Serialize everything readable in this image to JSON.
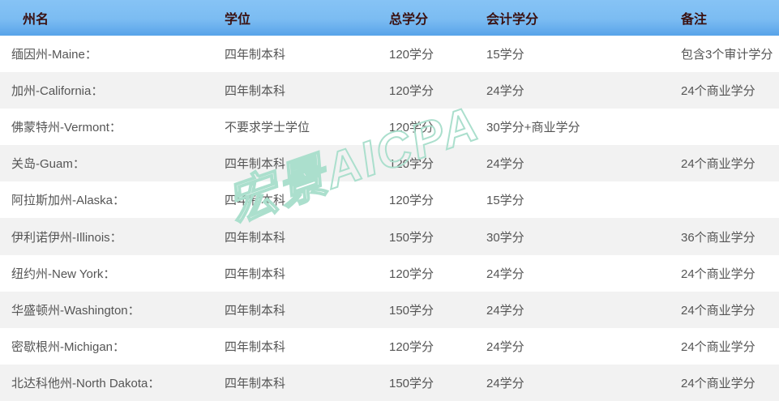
{
  "watermark": {
    "text": "宏景AICPA",
    "color": "#abdfcd"
  },
  "colors": {
    "header_gradient_top": "#86c3f5",
    "header_gradient_bottom": "#58a3e9",
    "header_text": "#3a1111",
    "body_text": "#555555",
    "row_alt_background": "#f2f2f2",
    "row_background": "#ffffff"
  },
  "table": {
    "columns": [
      {
        "key": "state",
        "label": "州名"
      },
      {
        "key": "degree",
        "label": "学位"
      },
      {
        "key": "total_credits",
        "label": "总学分"
      },
      {
        "key": "accounting_credits",
        "label": "会计学分"
      },
      {
        "key": "notes",
        "label": "备注"
      }
    ],
    "rows": [
      {
        "state": "缅因州-Maine：",
        "degree": "四年制本科",
        "total_credits": "120学分",
        "accounting_credits": "15学分",
        "notes": "包含3个审计学分"
      },
      {
        "state": "加州-California：",
        "degree": "四年制本科",
        "total_credits": "120学分",
        "accounting_credits": "24学分",
        "notes": "24个商业学分"
      },
      {
        "state": "佛蒙特州-Vermont：",
        "degree": "不要求学士学位",
        "total_credits": "120学分",
        "accounting_credits": "30学分+商业学分",
        "notes": ""
      },
      {
        "state": "关岛-Guam：",
        "degree": "四年制本科",
        "total_credits": "120学分",
        "accounting_credits": "24学分",
        "notes": "24个商业学分"
      },
      {
        "state": "阿拉斯加州-Alaska：",
        "degree": "四年制本科",
        "total_credits": "120学分",
        "accounting_credits": "15学分",
        "notes": ""
      },
      {
        "state": "伊利诺伊州-Illinois：",
        "degree": "四年制本科",
        "total_credits": "150学分",
        "accounting_credits": "30学分",
        "notes": "36个商业学分"
      },
      {
        "state": "纽约州-New York：",
        "degree": "四年制本科",
        "total_credits": "120学分",
        "accounting_credits": "24学分",
        "notes": "24个商业学分"
      },
      {
        "state": "华盛顿州-Washington：",
        "degree": "四年制本科",
        "total_credits": "150学分",
        "accounting_credits": "24学分",
        "notes": "24个商业学分"
      },
      {
        "state": "密歇根州-Michigan：",
        "degree": "四年制本科",
        "total_credits": "120学分",
        "accounting_credits": "24学分",
        "notes": "24个商业学分"
      },
      {
        "state": "北达科他州-North Dakota：",
        "degree": "四年制本科",
        "total_credits": "150学分",
        "accounting_credits": "24学分",
        "notes": "24个商业学分"
      }
    ]
  },
  "chart_data": {
    "type": "table",
    "columns": [
      "州名",
      "学位",
      "总学分",
      "会计学分",
      "备注"
    ],
    "rows": [
      [
        "缅因州-Maine：",
        "四年制本科",
        "120学分",
        "15学分",
        "包含3个审计学分"
      ],
      [
        "加州-California：",
        "四年制本科",
        "120学分",
        "24学分",
        "24个商业学分"
      ],
      [
        "佛蒙特州-Vermont：",
        "不要求学士学位",
        "120学分",
        "30学分+商业学分",
        ""
      ],
      [
        "关岛-Guam：",
        "四年制本科",
        "120学分",
        "24学分",
        "24个商业学分"
      ],
      [
        "阿拉斯加州-Alaska：",
        "四年制本科",
        "120学分",
        "15学分",
        ""
      ],
      [
        "伊利诺伊州-Illinois：",
        "四年制本科",
        "150学分",
        "30学分",
        "36个商业学分"
      ],
      [
        "纽约州-New York：",
        "四年制本科",
        "120学分",
        "24学分",
        "24个商业学分"
      ],
      [
        "华盛顿州-Washington：",
        "四年制本科",
        "150学分",
        "24学分",
        "24个商业学分"
      ],
      [
        "密歇根州-Michigan：",
        "四年制本科",
        "120学分",
        "24学分",
        "24个商业学分"
      ],
      [
        "北达科他州-North Dakota：",
        "四年制本科",
        "150学分",
        "24学分",
        "24个商业学分"
      ]
    ]
  }
}
